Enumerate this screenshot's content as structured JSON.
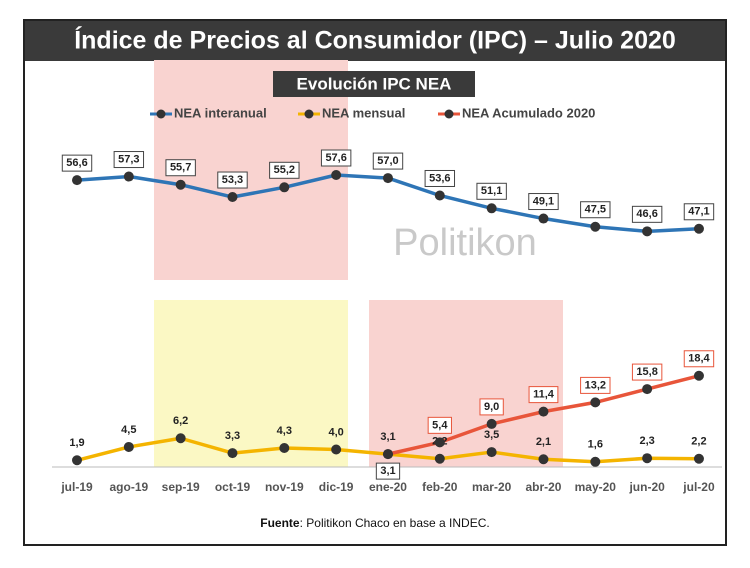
{
  "chart_data": {
    "type": "line",
    "title": "Índice de Precios al Consumidor (IPC) – Julio 2020",
    "subtitle": "Evolución IPC NEA",
    "watermark": "Politikon",
    "source_label": "Fuente",
    "source_text": ": Politikon Chaco en base a INDEC.",
    "categories": [
      "jul-19",
      "ago-19",
      "sep-19",
      "oct-19",
      "nov-19",
      "dic-19",
      "ene-20",
      "feb-20",
      "mar-20",
      "abr-20",
      "may-20",
      "jun-20",
      "jul-20"
    ],
    "series": [
      {
        "name": "NEA interanual",
        "color": "#2e75b6",
        "values": [
          56.6,
          57.3,
          55.7,
          53.3,
          55.2,
          57.6,
          57.0,
          53.6,
          51.1,
          49.1,
          47.5,
          46.6,
          47.1
        ],
        "value_labels": [
          "56,6",
          "57,3",
          "55,7",
          "53,3",
          "55,2",
          "57,6",
          "57,0",
          "53,6",
          "51,1",
          "49,1",
          "47,5",
          "46,6",
          "47,1"
        ]
      },
      {
        "name": "NEA mensual",
        "color": "#f4b400",
        "values": [
          1.9,
          4.5,
          6.2,
          3.3,
          4.3,
          4.0,
          3.1,
          2.2,
          3.5,
          2.1,
          1.6,
          2.3,
          2.2
        ],
        "value_labels": [
          "1,9",
          "4,5",
          "6,2",
          "3,3",
          "4,3",
          "4,0",
          "3,1",
          "2,2",
          "3,5",
          "2,1",
          "1,6",
          "2,3",
          "2,2"
        ]
      },
      {
        "name": "NEA Acumulado 2020",
        "color": "#e8553a",
        "values": [
          null,
          null,
          null,
          null,
          null,
          null,
          3.1,
          5.4,
          9.0,
          11.4,
          13.2,
          15.8,
          18.4
        ],
        "value_labels": [
          null,
          null,
          null,
          null,
          null,
          null,
          "3,1",
          "5,4",
          "9,0",
          "11,4",
          "13,2",
          "15,8",
          "18,4"
        ]
      }
    ],
    "legend": "top"
  }
}
